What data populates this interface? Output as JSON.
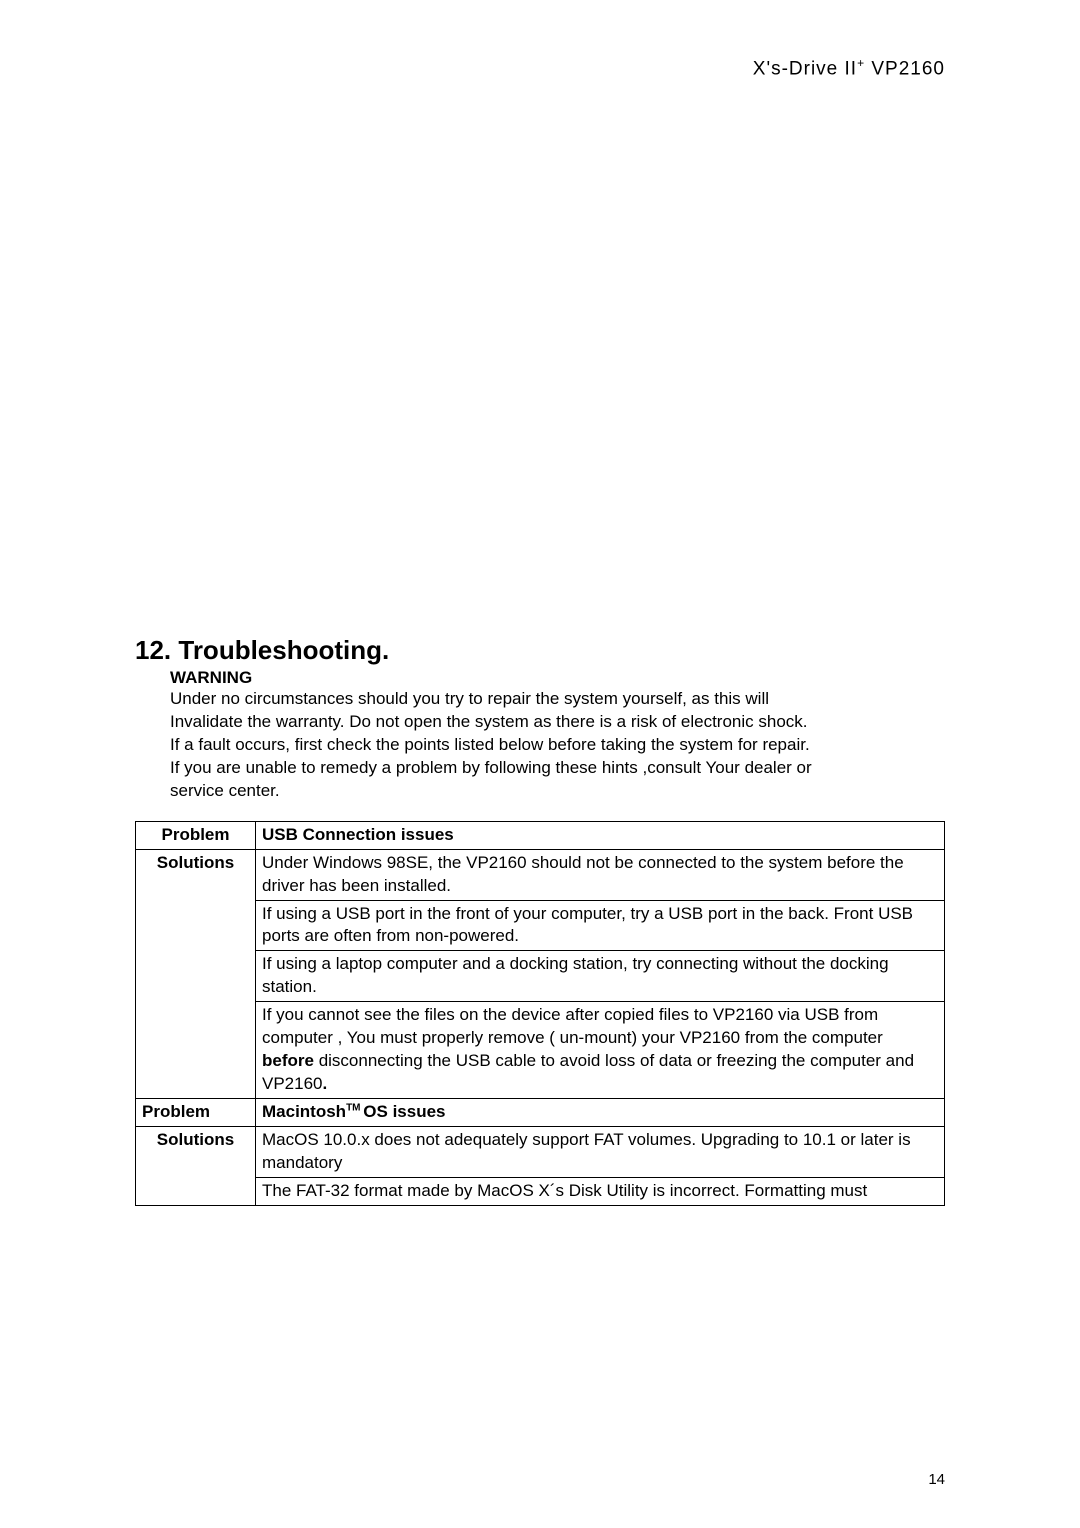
{
  "header": {
    "prefix": "X's-Drive II",
    "sup": "+",
    "suffix": "  VP2160"
  },
  "section": {
    "title": "12. Troubleshooting.",
    "warning_label": "WARNING",
    "warning_line1": "Under no circumstances should you try to repair the system yourself, as this will",
    "warning_line2": "Invalidate the warranty. Do not open the system as there is a risk of electronic shock.",
    "warning_line3": "If a fault occurs, first check the points listed below before taking the system for repair.",
    "warning_line4": "If you are unable to remedy a problem by following these hints ,consult Your dealer or",
    "warning_line5": "service center."
  },
  "table": {
    "row1_left": "Problem",
    "row1_right": "USB Connection issues",
    "row2_left": "Solutions",
    "row2_right": "Under Windows 98SE, the VP2160 should not be connected to the system before the driver has been installed.",
    "row3_right": "If using a USB port in the front of your computer, try a USB port in the back. Front USB ports are often from non-powered.",
    "row4_right": "If using a laptop computer and a docking station, try connecting without the docking station.",
    "row5_right_part1": "If you cannot see the files on the device after copied files to VP2160 via USB from computer , You must properly remove ( un-mount) your VP2160 from the computer ",
    "row5_right_bold": "before",
    "row5_right_part2": " disconnecting the USB cable to avoid loss of data or freezing the computer and VP2160",
    "row5_right_dot": ".",
    "row6_left": "Problem",
    "row6_right_prefix": "Macintosh",
    "row6_right_tm": "TM ",
    "row6_right_suffix": "OS issues",
    "row7_left": "Solutions",
    "row7_right": "MacOS 10.0.x does not adequately support FAT volumes. Upgrading to 10.1 or later is mandatory",
    "row8_right": "The FAT-32 format made by MacOS X´s Disk Utility is incorrect. Formatting must"
  },
  "page_number": "14"
}
